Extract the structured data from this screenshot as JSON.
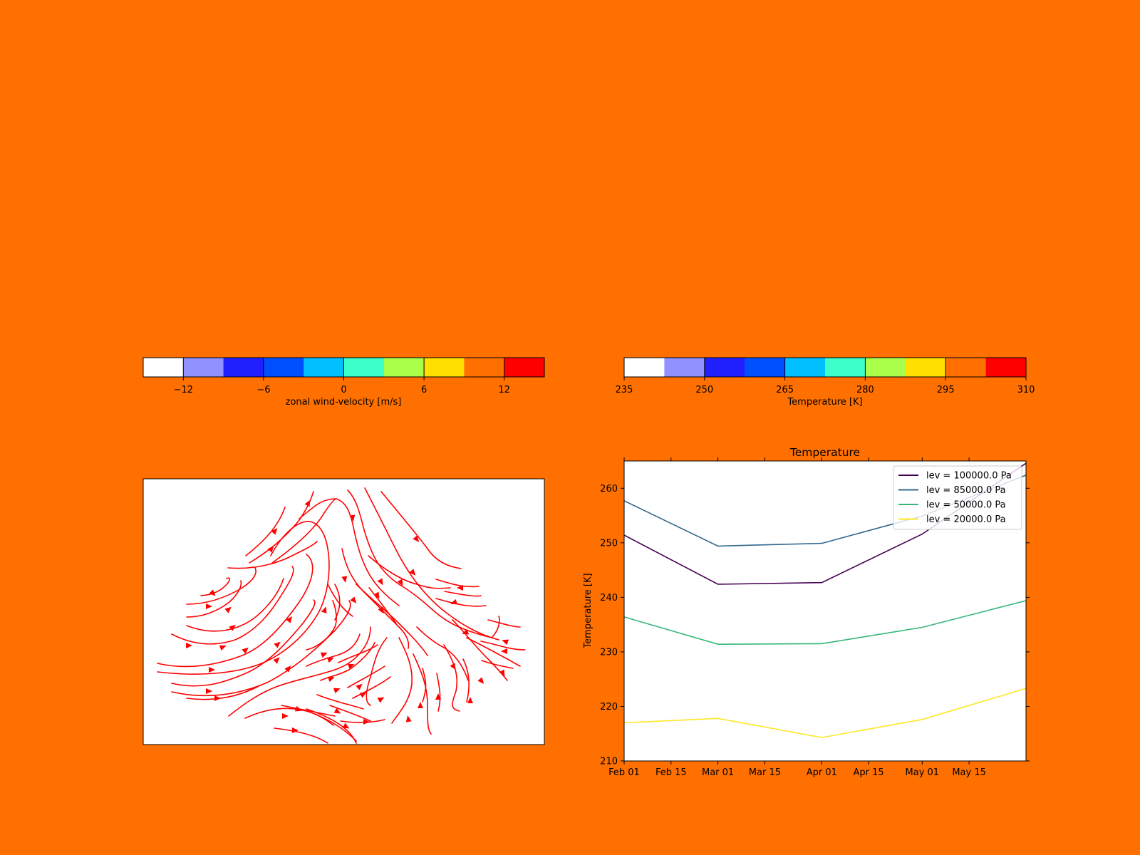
{
  "colors": {
    "figure_background": "#ff7000",
    "streamline": "#ff0000",
    "wind_colormap": [
      "#ffffff",
      "#9191ff",
      "#2020ff",
      "#0050ff",
      "#00c0ff",
      "#3cffca",
      "#aaff4b",
      "#ffe000",
      "#ff7000",
      "#ff0000"
    ],
    "temperature_colormap": [
      "#ffffff",
      "#9191ff",
      "#2020ff",
      "#0050ff",
      "#00c0ff",
      "#3cffca",
      "#aaff4b",
      "#ffe000",
      "#ff7000",
      "#ff0000"
    ]
  },
  "chart_data": [
    {
      "type": "colorbar",
      "label": "zonal wind-velocity [m/s]",
      "range": [
        -15,
        15
      ],
      "levels": [
        -15,
        -12,
        -9,
        -6,
        -3,
        0,
        3,
        6,
        9,
        12,
        15
      ],
      "tick_values": [
        -12,
        -6,
        0,
        6,
        12
      ],
      "tick_labels": [
        "−12",
        "−6",
        "0",
        "6",
        "12"
      ]
    },
    {
      "type": "colorbar",
      "label": "Temperature [K]",
      "range": [
        235,
        310
      ],
      "levels": [
        235,
        242.5,
        250,
        257.5,
        265,
        272.5,
        280,
        287.5,
        295,
        302.5,
        310
      ],
      "tick_values": [
        235,
        250,
        265,
        280,
        295,
        310
      ],
      "tick_labels": [
        "235",
        "250",
        "265",
        "280",
        "295",
        "310"
      ]
    },
    {
      "type": "streamplot",
      "color": "#ff0000",
      "axes": "off"
    },
    {
      "type": "line",
      "title": "Temperature",
      "ylabel": "Temperature [K]",
      "xlabel": "",
      "x": [
        "2018-02-01",
        "2018-03-01",
        "2018-04-01",
        "2018-05-01",
        "2018-06-01"
      ],
      "xlim": [
        "2018-02-01",
        "2018-06-01"
      ],
      "ylim": [
        210,
        265
      ],
      "xtick_values": [
        "2018-02-01",
        "2018-02-15",
        "2018-03-01",
        "2018-03-15",
        "2018-04-01",
        "2018-04-15",
        "2018-05-01",
        "2018-05-15"
      ],
      "xtick_labels": [
        "Feb 01",
        "Feb 15",
        "Mar 01",
        "Mar 15",
        "Apr 01",
        "Apr 15",
        "May 01",
        "May 15"
      ],
      "ytick_values": [
        210,
        220,
        230,
        240,
        250,
        260
      ],
      "ytick_labels": [
        "210",
        "220",
        "230",
        "240",
        "250",
        "260"
      ],
      "legend_placement": "top-right",
      "series": [
        {
          "name": "lev = 100000.0 Pa",
          "color": "#440154",
          "values": [
            251.4,
            242.4,
            242.7,
            251.6,
            264.6
          ]
        },
        {
          "name": "lev = 85000.0 Pa",
          "color": "#31688e",
          "values": [
            257.7,
            249.4,
            249.9,
            254.9,
            262.4
          ]
        },
        {
          "name": "lev = 50000.0 Pa",
          "color": "#35b779",
          "values": [
            236.4,
            231.4,
            231.5,
            234.5,
            239.4
          ]
        },
        {
          "name": "lev = 20000.0 Pa",
          "color": "#fde725",
          "values": [
            217.0,
            217.8,
            214.3,
            217.6,
            223.3
          ]
        }
      ]
    }
  ]
}
